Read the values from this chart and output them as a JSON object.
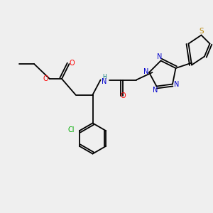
{
  "background_color": "#efefef",
  "bond_color": "#000000",
  "atom_colors": {
    "O": "#ff0000",
    "N": "#0000cc",
    "S": "#b8860b",
    "Cl": "#00aa00",
    "H": "#007070",
    "C": "#000000"
  },
  "figsize": [
    3.0,
    3.0
  ],
  "dpi": 100
}
